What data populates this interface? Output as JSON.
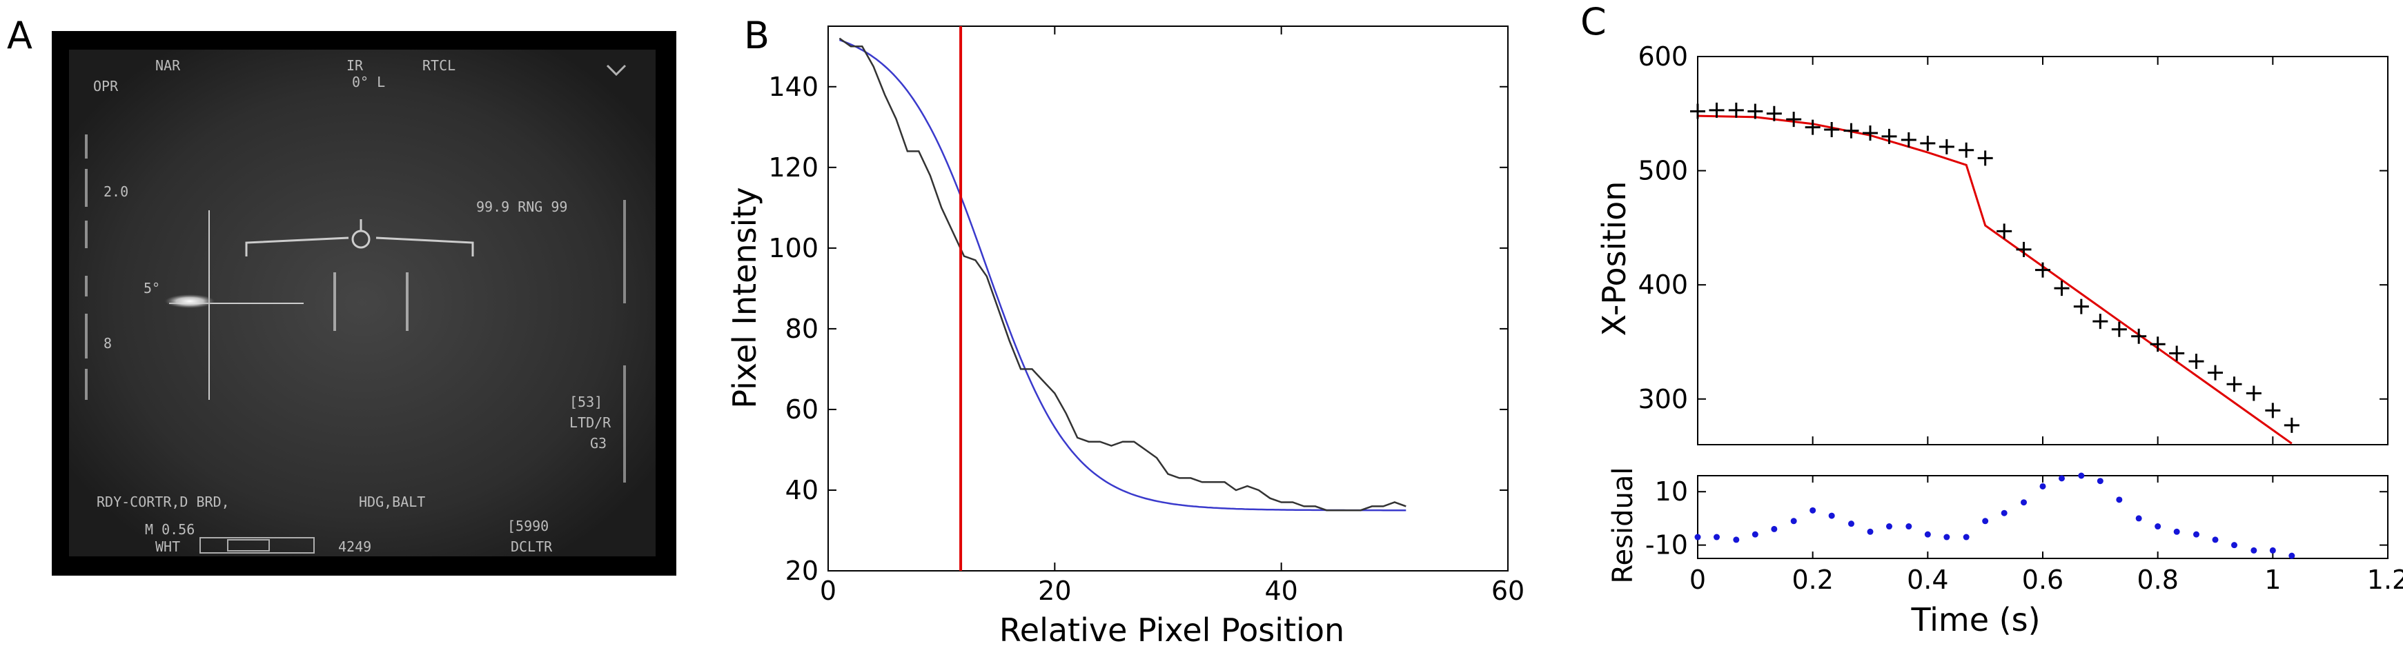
{
  "panels": {
    "a": {
      "letter": "A"
    },
    "b": {
      "letter": "B"
    },
    "c": {
      "letter": "C"
    }
  },
  "hud": {
    "top_left": "OPR",
    "top_mid1": "NAR",
    "top_mid2": "IR",
    "top_mid3": "RTCL",
    "top_sub": "0° L",
    "scale": "2.0",
    "range": "99.9 RNG 99",
    "angle": "5°",
    "side_mid": "8",
    "track1": "[53]",
    "track2": "LTD/R",
    "track3": "G3",
    "bottom1": "RDY-CORTR,D BRD,",
    "bottom2": "HDG,BALT",
    "bottom3": "M 0.56",
    "bottom4": "WHT",
    "bottom5": "4249",
    "bottom6": "[5990",
    "bottom7": "DCLTR",
    "colors": {
      "background": "#000000",
      "frame": "#1a1a1a"
    }
  },
  "chart_data": [
    {
      "panel": "B",
      "type": "line",
      "xlabel": "Relative Pixel Position",
      "ylabel": "Pixel Intensity",
      "xlim": [
        0,
        60
      ],
      "ylim": [
        20,
        155
      ],
      "xticks": [
        0,
        20,
        40,
        60
      ],
      "yticks": [
        20,
        40,
        60,
        80,
        100,
        120,
        140
      ],
      "vline": {
        "x": 11.7,
        "color": "#e00000"
      },
      "series": [
        {
          "role": "measured",
          "color": "#333333",
          "x": [
            1,
            2,
            3,
            4,
            5,
            6,
            7,
            8,
            9,
            10,
            11,
            12,
            13,
            14,
            15,
            16,
            17,
            18,
            19,
            20,
            21,
            22,
            23,
            24,
            25,
            26,
            27,
            28,
            29,
            30,
            31,
            32,
            33,
            34,
            35,
            36,
            37,
            38,
            39,
            40,
            41,
            42,
            43,
            44,
            45,
            46,
            47,
            48,
            49,
            50,
            51
          ],
          "y": [
            152,
            150,
            150,
            145,
            138,
            132,
            124,
            124,
            118,
            110,
            104,
            98,
            97,
            93,
            85,
            77,
            70,
            70,
            67,
            64,
            59,
            53,
            52,
            52,
            51,
            52,
            52,
            50,
            48,
            44,
            43,
            43,
            42,
            42,
            42,
            40,
            41,
            40,
            38,
            37,
            37,
            36,
            36,
            35,
            35,
            35,
            35,
            36,
            36,
            37,
            36
          ]
        },
        {
          "role": "fit",
          "color": "#3a3acc",
          "model": {
            "kind": "sigmoid",
            "min": 35.0,
            "max": 155.4,
            "center": 14.0,
            "scale": 3.8
          }
        }
      ]
    },
    {
      "panel": "C-top",
      "type": "scatter",
      "xlabel": "",
      "ylabel": "X-Position",
      "xlim": [
        0,
        1.2
      ],
      "ylim": [
        260,
        600
      ],
      "xticks": [],
      "yticks": [
        300,
        400,
        500,
        600
      ],
      "series": [
        {
          "role": "measured",
          "marker": "plus",
          "color": "#000000",
          "x": [
            0.0,
            0.033,
            0.067,
            0.1,
            0.133,
            0.167,
            0.2,
            0.233,
            0.267,
            0.3,
            0.333,
            0.367,
            0.4,
            0.433,
            0.467,
            0.5,
            0.533,
            0.567,
            0.6,
            0.633,
            0.667,
            0.7,
            0.733,
            0.767,
            0.8,
            0.833,
            0.867,
            0.9,
            0.933,
            0.967,
            1.0,
            1.033
          ],
          "y": [
            552,
            553,
            553,
            552,
            550,
            545,
            538,
            536,
            535,
            533,
            530,
            527,
            524,
            521,
            518,
            511,
            447,
            431,
            413,
            397,
            381,
            368,
            361,
            355,
            348,
            340,
            333,
            323,
            313,
            305,
            290,
            277
          ]
        },
        {
          "role": "fit",
          "color": "#e00000",
          "x": [
            0.0,
            0.1,
            0.2,
            0.3,
            0.4,
            0.467,
            0.5,
            1.033
          ],
          "y": [
            548,
            547,
            541,
            531,
            516,
            505,
            452,
            261
          ]
        }
      ]
    },
    {
      "panel": "C-bottom",
      "type": "scatter",
      "xlabel": "Time (s)",
      "ylabel": "Residual",
      "xlim": [
        0,
        1.2
      ],
      "ylim": [
        -15,
        16
      ],
      "xticks": [
        0,
        0.2,
        0.4,
        0.6,
        0.8,
        1,
        1.2
      ],
      "xticklabels": [
        "0",
        "0.2",
        "0.4",
        "0.6",
        "0.8",
        "1",
        "1.2"
      ],
      "yticks": [
        -10,
        10
      ],
      "series": [
        {
          "role": "residual",
          "marker": "dot",
          "color": "#1515d8",
          "x": [
            0.0,
            0.033,
            0.067,
            0.1,
            0.133,
            0.167,
            0.2,
            0.233,
            0.267,
            0.3,
            0.333,
            0.367,
            0.4,
            0.433,
            0.467,
            0.5,
            0.533,
            0.567,
            0.6,
            0.633,
            0.667,
            0.7,
            0.733,
            0.767,
            0.8,
            0.833,
            0.867,
            0.9,
            0.933,
            0.967,
            1.0,
            1.033
          ],
          "y": [
            -7,
            -7,
            -8,
            -6,
            -4,
            -1,
            3,
            1,
            -2,
            -5,
            -3,
            -3,
            -6,
            -7,
            -7,
            -1,
            2,
            6,
            12,
            15,
            16,
            14,
            7,
            0,
            -3,
            -5,
            -6,
            -8,
            -10,
            -12,
            -12,
            -14
          ]
        }
      ]
    }
  ]
}
